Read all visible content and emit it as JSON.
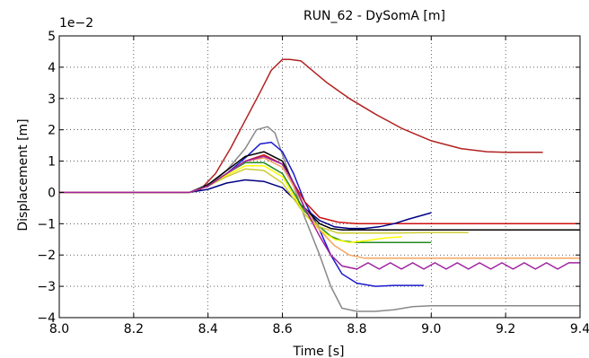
{
  "chart_data": {
    "type": "line",
    "title": "RUN_62 - DySomA [m]",
    "xlabel": "Time [s]",
    "ylabel": "Displacement [m]",
    "y_offset_text": "1e−2",
    "xlim": [
      8.0,
      9.4
    ],
    "ylim": [
      -4,
      5
    ],
    "y_scale_factor": 0.01,
    "grid": true,
    "x_ticks": [
      "8.0",
      "8.2",
      "8.4",
      "8.6",
      "8.8",
      "9.0",
      "9.2",
      "9.4"
    ],
    "y_ticks": [
      "−4",
      "−3",
      "−2",
      "−1",
      "0",
      "1",
      "2",
      "3",
      "4",
      "5"
    ],
    "series": [
      {
        "color": "#b22222",
        "x": [
          8.0,
          8.35,
          8.38,
          8.42,
          8.46,
          8.5,
          8.54,
          8.57,
          8.6,
          8.62,
          8.65,
          8.68,
          8.72,
          8.78,
          8.85,
          8.92,
          9.0,
          9.08,
          9.15,
          9.2,
          9.3
        ],
        "y": [
          0,
          0,
          0.1,
          0.6,
          1.4,
          2.3,
          3.2,
          3.9,
          4.25,
          4.25,
          4.2,
          3.9,
          3.5,
          3.0,
          2.5,
          2.05,
          1.65,
          1.4,
          1.3,
          1.28,
          1.28
        ]
      },
      {
        "color": "#888888",
        "x": [
          8.0,
          8.35,
          8.4,
          8.45,
          8.5,
          8.53,
          8.56,
          8.58,
          8.6,
          8.63,
          8.66,
          8.7,
          8.73,
          8.76,
          8.8,
          8.85,
          8.9,
          8.95,
          9.0,
          9.2,
          9.4
        ],
        "y": [
          0,
          0,
          0.2,
          0.7,
          1.4,
          2.0,
          2.1,
          1.9,
          1.2,
          0.2,
          -0.8,
          -2.0,
          -3.0,
          -3.7,
          -3.8,
          -3.8,
          -3.75,
          -3.65,
          -3.62,
          -3.62,
          -3.62
        ]
      },
      {
        "color": "#1a1acc",
        "x": [
          8.0,
          8.35,
          8.4,
          8.45,
          8.5,
          8.54,
          8.57,
          8.6,
          8.63,
          8.66,
          8.7,
          8.73,
          8.76,
          8.8,
          8.85,
          8.9,
          8.95,
          8.98
        ],
        "y": [
          0,
          0,
          0.2,
          0.6,
          1.1,
          1.55,
          1.6,
          1.3,
          0.6,
          -0.3,
          -1.2,
          -2.0,
          -2.6,
          -2.9,
          -3.0,
          -2.97,
          -2.97,
          -2.97
        ]
      },
      {
        "color": "#cc1111",
        "x": [
          8.0,
          8.35,
          8.4,
          8.45,
          8.5,
          8.55,
          8.6,
          8.63,
          8.66,
          8.7,
          8.75,
          8.8,
          8.9,
          9.0,
          9.2,
          9.4
        ],
        "y": [
          0,
          0,
          0.2,
          0.6,
          1.0,
          1.2,
          0.9,
          0.3,
          -0.3,
          -0.8,
          -0.95,
          -1.0,
          -1.0,
          -1.0,
          -1.0,
          -1.0
        ]
      },
      {
        "color": "#000000",
        "x": [
          8.0,
          8.35,
          8.4,
          8.45,
          8.5,
          8.55,
          8.6,
          8.63,
          8.66,
          8.7,
          8.73,
          8.76,
          8.8,
          8.9,
          9.0,
          9.1,
          9.2,
          9.3,
          9.4
        ],
        "y": [
          0,
          0,
          0.25,
          0.7,
          1.15,
          1.3,
          1.0,
          0.3,
          -0.5,
          -1.0,
          -1.15,
          -1.2,
          -1.2,
          -1.2,
          -1.2,
          -1.2,
          -1.2,
          -1.2,
          -1.2
        ]
      },
      {
        "color": "#000080",
        "x": [
          8.0,
          8.35,
          8.4,
          8.45,
          8.5,
          8.55,
          8.6,
          8.63,
          8.67,
          8.7,
          8.74,
          8.78,
          8.82,
          8.86,
          8.9,
          8.94,
          8.97,
          9.0
        ],
        "y": [
          0,
          0,
          0.1,
          0.3,
          0.4,
          0.35,
          0.15,
          -0.2,
          -0.6,
          -0.9,
          -1.1,
          -1.15,
          -1.15,
          -1.1,
          -1.0,
          -0.85,
          -0.75,
          -0.65
        ]
      },
      {
        "color": "#228b22",
        "x": [
          8.0,
          8.35,
          8.4,
          8.45,
          8.5,
          8.55,
          8.6,
          8.63,
          8.66,
          8.7,
          8.73,
          8.76,
          8.8,
          8.9,
          9.0
        ],
        "y": [
          0,
          0,
          0.2,
          0.6,
          0.95,
          0.95,
          0.6,
          0.0,
          -0.6,
          -1.1,
          -1.4,
          -1.55,
          -1.6,
          -1.6,
          -1.6
        ]
      },
      {
        "color": "#ffff00",
        "x": [
          8.0,
          8.35,
          8.4,
          8.45,
          8.5,
          8.55,
          8.6,
          8.63,
          8.66,
          8.7,
          8.74,
          8.78,
          8.82,
          8.88,
          8.92
        ],
        "y": [
          0,
          0,
          0.2,
          0.55,
          0.85,
          0.85,
          0.5,
          -0.1,
          -0.7,
          -1.2,
          -1.5,
          -1.6,
          -1.55,
          -1.45,
          -1.42
        ]
      },
      {
        "color": "#cccc33",
        "x": [
          8.0,
          8.35,
          8.4,
          8.45,
          8.5,
          8.55,
          8.6,
          8.63,
          8.66,
          8.7,
          8.75,
          8.8,
          8.9,
          9.0,
          9.1
        ],
        "y": [
          0,
          0,
          0.2,
          0.5,
          0.75,
          0.7,
          0.3,
          -0.2,
          -0.7,
          -1.1,
          -1.3,
          -1.3,
          -1.3,
          -1.28,
          -1.28
        ]
      },
      {
        "color": "#f4a460",
        "x": [
          8.0,
          8.35,
          8.4,
          8.45,
          8.5,
          8.55,
          8.6,
          8.63,
          8.66,
          8.7,
          8.74,
          8.78,
          8.82,
          8.9,
          9.0,
          9.2,
          9.4
        ],
        "y": [
          0,
          0,
          0.2,
          0.6,
          1.0,
          1.1,
          0.8,
          0.2,
          -0.5,
          -1.2,
          -1.7,
          -2.0,
          -2.1,
          -2.1,
          -2.1,
          -2.1,
          -2.1
        ]
      },
      {
        "color": "#a020a0",
        "x": [
          8.0,
          8.35,
          8.4,
          8.45,
          8.5,
          8.55,
          8.6,
          8.63,
          8.66,
          8.7,
          8.73,
          8.76,
          8.8,
          8.83,
          8.86,
          8.89,
          8.92,
          8.95,
          8.98,
          9.01,
          9.04,
          9.07,
          9.1,
          9.13,
          9.16,
          9.19,
          9.22,
          9.25,
          9.28,
          9.31,
          9.34,
          9.37,
          9.4
        ],
        "y": [
          0,
          0,
          0.2,
          0.6,
          1.0,
          1.15,
          0.9,
          0.3,
          -0.5,
          -1.4,
          -2.0,
          -2.35,
          -2.45,
          -2.25,
          -2.45,
          -2.25,
          -2.45,
          -2.25,
          -2.45,
          -2.25,
          -2.45,
          -2.25,
          -2.45,
          -2.25,
          -2.45,
          -2.25,
          -2.45,
          -2.25,
          -2.45,
          -2.25,
          -2.45,
          -2.25,
          -2.25
        ]
      }
    ]
  }
}
